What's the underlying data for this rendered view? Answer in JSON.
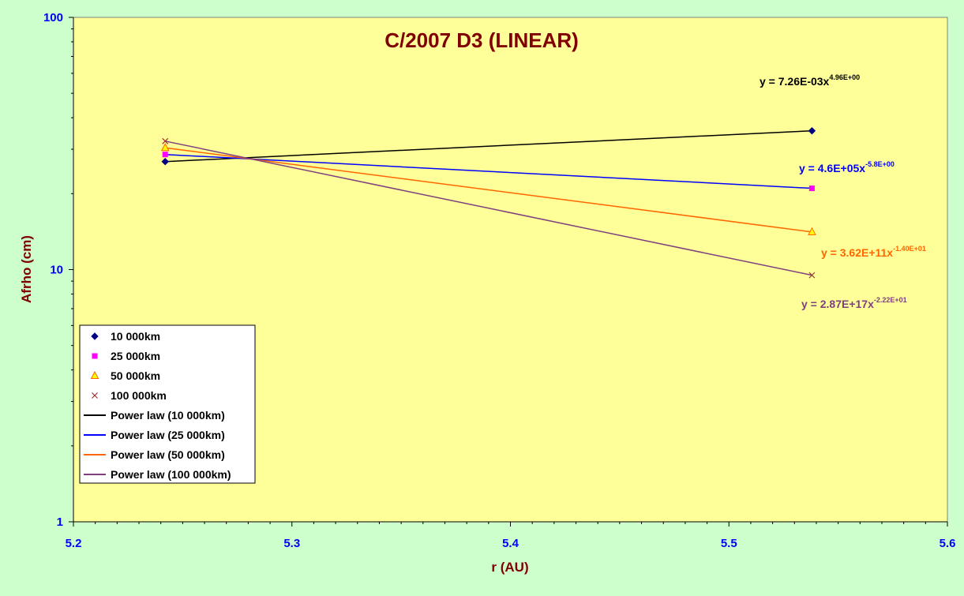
{
  "chart_data": {
    "type": "scatter",
    "title": "C/2007 D3 (LINEAR)",
    "xlabel": "r (AU)",
    "ylabel": "Afrho (cm)",
    "xlim": [
      5.2,
      5.6
    ],
    "ylim": [
      1,
      100
    ],
    "y_scale": "log",
    "x_ticks": [
      "5.2",
      "5.3",
      "5.4",
      "5.5",
      "5.6"
    ],
    "y_ticks": [
      {
        "value": 1,
        "label": "1"
      },
      {
        "value": 10,
        "label": "10"
      },
      {
        "value": 100,
        "label": "100"
      }
    ],
    "grid": false,
    "legend_position": "bottom-left",
    "colors": {
      "plot_background": "#ffff99",
      "page_background": "#ccffcc",
      "title": "#800000",
      "axis_label": "#800000",
      "tick_label": "#0000ff"
    },
    "series": [
      {
        "name": "10 000km",
        "marker": "diamond",
        "color": "#000080",
        "x": [
          5.242,
          5.538
        ],
        "y": [
          26.8,
          35.5
        ],
        "fit_name": "Power law (10 000km)",
        "fit_color": "#000000",
        "equation_base": "y = 7.26E-03x",
        "equation_exp": "4.96E+00",
        "equation_color": "#000000"
      },
      {
        "name": "25 000km",
        "marker": "square",
        "color": "#ff00ff",
        "x": [
          5.242,
          5.538
        ],
        "y": [
          28.6,
          21.0
        ],
        "fit_name": "Power law (25 000km)",
        "fit_color": "#0000ff",
        "equation_base": "y = 4.6E+05x",
        "equation_exp": "-5.8E+00",
        "equation_color": "#0000ff"
      },
      {
        "name": "50 000km",
        "marker": "triangle",
        "color": "#ff6600",
        "x": [
          5.242,
          5.538
        ],
        "y": [
          30.4,
          14.1
        ],
        "fit_name": "Power law (50 000km)",
        "fit_color": "#ff6600",
        "equation_base": "y = 3.62E+11x",
        "equation_exp": "-1.40E+01",
        "equation_color": "#ff6600"
      },
      {
        "name": "100 000km",
        "marker": "x",
        "color": "#993333",
        "x": [
          5.242,
          5.538
        ],
        "y": [
          32.3,
          9.5
        ],
        "fit_name": "Power law (100 000km)",
        "fit_color": "#7f3f7f",
        "equation_base": "y = 2.87E+17x",
        "equation_exp": "-2.22E+01",
        "equation_color": "#7f3f7f"
      }
    ]
  }
}
